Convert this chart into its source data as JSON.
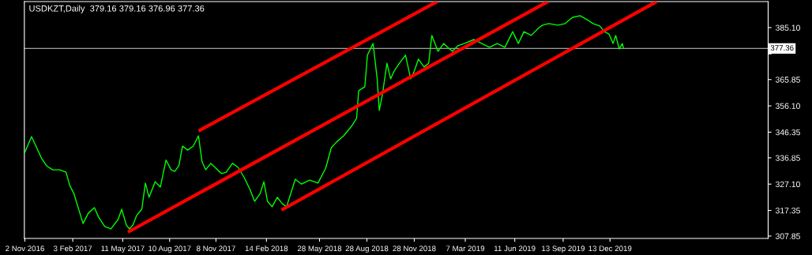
{
  "chart_data": {
    "type": "line",
    "title": "USDKZT,Daily  379.16 379.16 376.96 377.36",
    "x": [
      "2016-11-02",
      "2016-11-15",
      "2016-12-04",
      "2016-12-14",
      "2016-12-26",
      "2017-01-09",
      "2017-01-21",
      "2017-01-28",
      "2017-02-05",
      "2017-02-12",
      "2017-02-23",
      "2017-03-05",
      "2017-03-17",
      "2017-03-25",
      "2017-04-06",
      "2017-04-18",
      "2017-05-02",
      "2017-05-09",
      "2017-05-18",
      "2017-05-24",
      "2017-05-31",
      "2017-06-07",
      "2017-06-17",
      "2017-06-24",
      "2017-07-01",
      "2017-07-13",
      "2017-07-23",
      "2017-08-03",
      "2017-08-13",
      "2017-08-20",
      "2017-08-28",
      "2017-09-04",
      "2017-09-14",
      "2017-09-25",
      "2017-10-05",
      "2017-10-12",
      "2017-10-19",
      "2017-10-29",
      "2017-11-06",
      "2017-11-19",
      "2017-11-28",
      "2017-12-10",
      "2017-12-21",
      "2018-01-02",
      "2018-01-13",
      "2018-01-22",
      "2018-02-02",
      "2018-02-09",
      "2018-02-16",
      "2018-02-25",
      "2018-03-07",
      "2018-03-17",
      "2018-03-25",
      "2018-04-11",
      "2018-04-23",
      "2018-05-09",
      "2018-05-25",
      "2018-06-09",
      "2018-06-20",
      "2018-06-30",
      "2018-07-14",
      "2018-07-29",
      "2018-08-08",
      "2018-08-12",
      "2018-08-24",
      "2018-08-29",
      "2018-09-09",
      "2018-09-17",
      "2018-09-21",
      "2018-09-27",
      "2018-10-06",
      "2018-10-13",
      "2018-10-20",
      "2018-10-30",
      "2018-11-11",
      "2018-11-21",
      "2018-11-28",
      "2018-12-06",
      "2018-12-17",
      "2018-12-26",
      "2019-01-01",
      "2019-01-13",
      "2019-01-24",
      "2019-02-01",
      "2019-02-10",
      "2019-02-21",
      "2019-03-05",
      "2019-03-24",
      "2019-04-08",
      "2019-04-23",
      "2019-05-08",
      "2019-05-23",
      "2019-06-07",
      "2019-06-18",
      "2019-06-29",
      "2019-07-13",
      "2019-07-28",
      "2019-08-04",
      "2019-08-16",
      "2019-09-03",
      "2019-09-17",
      "2019-10-01",
      "2019-10-16",
      "2019-10-30",
      "2019-11-10",
      "2019-11-23",
      "2019-12-02",
      "2019-12-11",
      "2019-12-19",
      "2019-12-24",
      "2019-12-31",
      "2020-01-06",
      "2020-01-08"
    ],
    "series": [
      {
        "color": "#00ff00",
        "values": [
          338.9,
          344.7,
          336.8,
          333.9,
          332.4,
          332.4,
          331.5,
          326.6,
          323.7,
          319.3,
          312.5,
          316.3,
          318.4,
          314.9,
          311.4,
          310.5,
          314.0,
          317.8,
          311.9,
          310.5,
          312.0,
          315.5,
          317.8,
          327.5,
          322.2,
          328.0,
          326.0,
          336.0,
          332.4,
          331.8,
          333.9,
          341.2,
          339.7,
          341.2,
          345.0,
          335.4,
          332.4,
          334.8,
          333.3,
          331.0,
          331.5,
          334.8,
          333.3,
          329.5,
          325.1,
          320.7,
          323.7,
          328.0,
          320.7,
          318.7,
          322.2,
          319.8,
          318.7,
          328.9,
          327.1,
          328.6,
          327.5,
          333.0,
          340.6,
          342.7,
          345.0,
          348.5,
          351.5,
          361.7,
          363.2,
          374.9,
          379.2,
          366.1,
          354.4,
          360.2,
          371.9,
          366.1,
          369.0,
          371.9,
          374.9,
          366.1,
          369.0,
          373.4,
          370.5,
          371.9,
          382.2,
          376.3,
          379.2,
          377.8,
          376.3,
          378.4,
          379.2,
          380.7,
          379.2,
          377.8,
          379.2,
          377.8,
          383.6,
          379.2,
          383.6,
          382.2,
          385.1,
          386.0,
          386.6,
          386.0,
          386.6,
          388.9,
          389.5,
          388.0,
          386.6,
          385.7,
          383.6,
          382.7,
          379.2,
          382.2,
          377.2,
          379.2,
          377.4
        ]
      },
      {
        "type": "line",
        "color": "#ff0000",
        "x": [
          "2017-10-08",
          "2019-01-09"
        ],
        "values": [
          347.1,
          394.5
        ]
      },
      {
        "type": "line",
        "color": "#ff0000",
        "x": [
          "2017-05-24",
          "2019-08-12"
        ],
        "values": [
          309.6,
          394.5
        ]
      },
      {
        "type": "line",
        "color": "#ff0000",
        "x": [
          "2018-03-18",
          "2020-03-10"
        ],
        "values": [
          317.8,
          394.5
        ]
      }
    ],
    "xlim": [
      "2016-11-01",
      "2020-10-15"
    ],
    "xticks": [
      {
        "value": "2016-11-02",
        "label": "2 Nov 2016"
      },
      {
        "value": "2017-02-03",
        "label": "3 Feb 2017"
      },
      {
        "value": "2017-05-11",
        "label": "11 May 2017"
      },
      {
        "value": "2017-08-10",
        "label": "10 Aug 2017"
      },
      {
        "value": "2017-11-08",
        "label": "8 Nov 2017"
      },
      {
        "value": "2018-02-14",
        "label": "14 Feb 2018"
      },
      {
        "value": "2018-05-28",
        "label": "28 May 2018"
      },
      {
        "value": "2018-08-28",
        "label": "28 Aug 2018"
      },
      {
        "value": "2018-11-28",
        "label": "28 Nov 2018"
      },
      {
        "value": "2019-03-07",
        "label": "7 Mar 2019"
      },
      {
        "value": "2019-06-11",
        "label": "11 Jun 2019"
      },
      {
        "value": "2019-09-13",
        "label": "13 Sep 2019"
      },
      {
        "value": "2019-12-13",
        "label": "13 Dec 2019"
      }
    ],
    "ylim": [
      306.97,
      394.76
    ],
    "yticks": [
      {
        "value": 307.85,
        "label": "307.85"
      },
      {
        "value": 317.35,
        "label": "317.35"
      },
      {
        "value": 327.1,
        "label": "327.10"
      },
      {
        "value": 336.85,
        "label": "336.85"
      },
      {
        "value": 346.35,
        "label": "346.35"
      },
      {
        "value": 356.1,
        "label": "356.10"
      },
      {
        "value": 365.85,
        "label": "365.85"
      },
      {
        "value": 375.35,
        "label": null
      },
      {
        "value": 385.1,
        "label": "385.10"
      }
    ],
    "ref_lines": [
      {
        "axis": "y",
        "value": 377.36,
        "label": "377.36",
        "color": "#a0a0a0"
      }
    ],
    "grid": false
  }
}
